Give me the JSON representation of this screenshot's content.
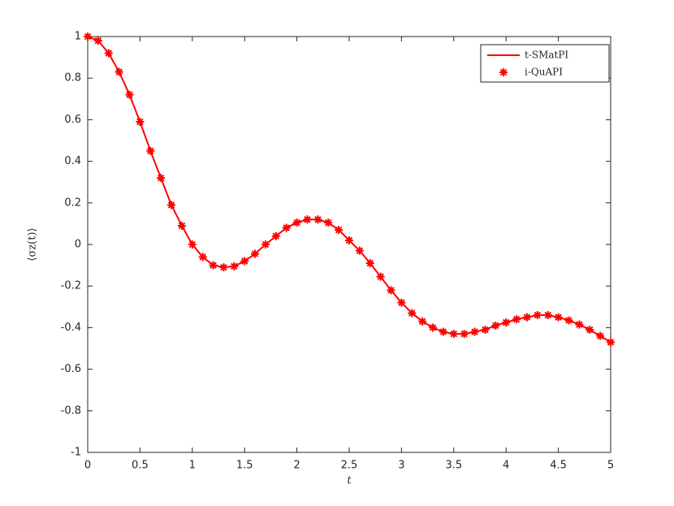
{
  "chart_data": {
    "type": "line",
    "xlabel": "t",
    "ylabel": "⟨σz(t)⟩",
    "x": [
      0,
      0.1,
      0.2,
      0.3,
      0.4,
      0.5,
      0.6,
      0.7,
      0.8,
      0.9,
      1,
      1.1,
      1.2,
      1.3,
      1.4,
      1.5,
      1.6,
      1.7,
      1.8,
      1.9,
      2,
      2.1,
      2.2,
      2.3,
      2.4,
      2.5,
      2.6,
      2.7,
      2.8,
      2.9,
      3,
      3.1,
      3.2,
      3.3,
      3.4,
      3.5,
      3.6,
      3.7,
      3.8,
      3.9,
      4,
      4.1,
      4.2,
      4.3,
      4.4,
      4.5,
      4.6,
      4.7,
      4.8,
      4.9,
      5
    ],
    "series": [
      {
        "name": "t-SMatPI",
        "color": "#ff0000",
        "style": "line",
        "values": [
          1,
          0.98,
          0.92,
          0.83,
          0.72,
          0.59,
          0.45,
          0.32,
          0.19,
          0.09,
          0,
          -0.06,
          -0.1,
          -0.11,
          -0.105,
          -0.08,
          -0.045,
          0,
          0.04,
          0.08,
          0.105,
          0.12,
          0.12,
          0.105,
          0.07,
          0.02,
          -0.03,
          -0.09,
          -0.155,
          -0.22,
          -0.28,
          -0.33,
          -0.37,
          -0.4,
          -0.42,
          -0.43,
          -0.43,
          -0.42,
          -0.41,
          -0.39,
          -0.375,
          -0.36,
          -0.35,
          -0.34,
          -0.34,
          -0.35,
          -0.365,
          -0.385,
          -0.41,
          -0.44,
          -0.47
        ]
      },
      {
        "name": "i-QuAPI",
        "color": "#ff0000",
        "style": "marker",
        "values": [
          1,
          0.98,
          0.92,
          0.83,
          0.72,
          0.59,
          0.45,
          0.32,
          0.19,
          0.09,
          0,
          -0.06,
          -0.1,
          -0.11,
          -0.105,
          -0.08,
          -0.045,
          0,
          0.04,
          0.08,
          0.105,
          0.12,
          0.12,
          0.105,
          0.07,
          0.02,
          -0.03,
          -0.09,
          -0.155,
          -0.22,
          -0.28,
          -0.33,
          -0.37,
          -0.4,
          -0.42,
          -0.43,
          -0.43,
          -0.42,
          -0.41,
          -0.39,
          -0.375,
          -0.36,
          -0.35,
          -0.34,
          -0.34,
          -0.35,
          -0.365,
          -0.385,
          -0.41,
          -0.44,
          -0.47
        ]
      }
    ],
    "xlim": [
      0,
      5
    ],
    "xticks": [
      0,
      0.5,
      1,
      1.5,
      2,
      2.5,
      3,
      3.5,
      4,
      4.5,
      5
    ],
    "ylim": [
      -1,
      1
    ],
    "yticks": [
      -1,
      -0.8,
      -0.6,
      -0.4,
      -0.2,
      0,
      0.2,
      0.4,
      0.6,
      0.8,
      1
    ],
    "legend": "upper right",
    "grid": false
  }
}
